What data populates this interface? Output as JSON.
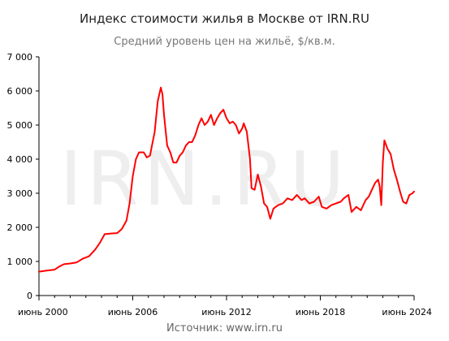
{
  "title": "Индекс стоимости жилья в Москве от IRN.RU",
  "subtitle": "Средний уровень цен на жильё, $/кв.м.",
  "source": "Источник: www.irn.ru",
  "watermark": "IRN.RU",
  "colors": {
    "line": "#ff0000",
    "axis": "#000000",
    "watermark": "#eeeeee"
  },
  "chart_data": {
    "type": "line",
    "title": "Индекс стоимости жилья в Москве от IRN.RU",
    "subtitle": "Средний уровень цен на жильё, $/кв.м.",
    "xlabel": "",
    "ylabel": "",
    "xlim": [
      2000.0,
      2024.0
    ],
    "ylim": [
      0,
      7000
    ],
    "grid": false,
    "yticks": [
      "0",
      "1 000",
      "2 000",
      "3 000",
      "4 000",
      "5 000",
      "6 000",
      "7 000"
    ],
    "xticks": [
      {
        "label": "июнь 2000",
        "x": 2000.0
      },
      {
        "label": "июнь 2006",
        "x": 2006.0
      },
      {
        "label": "июнь 2012",
        "x": 2012.0
      },
      {
        "label": "июнь 2018",
        "x": 2018.0
      },
      {
        "label": "июнь 2024",
        "x": 2024.0
      }
    ],
    "series": [
      {
        "values": [
          [
            2000.0,
            700
          ],
          [
            2000.5,
            730
          ],
          [
            2001.0,
            760
          ],
          [
            2001.3,
            850
          ],
          [
            2001.6,
            920
          ],
          [
            2002.0,
            940
          ],
          [
            2002.4,
            970
          ],
          [
            2002.8,
            1080
          ],
          [
            2003.2,
            1150
          ],
          [
            2003.6,
            1350
          ],
          [
            2003.9,
            1550
          ],
          [
            2004.2,
            1800
          ],
          [
            2004.6,
            1820
          ],
          [
            2005.0,
            1830
          ],
          [
            2005.3,
            1950
          ],
          [
            2005.6,
            2200
          ],
          [
            2005.8,
            2700
          ],
          [
            2006.0,
            3500
          ],
          [
            2006.2,
            4000
          ],
          [
            2006.4,
            4200
          ],
          [
            2006.7,
            4200
          ],
          [
            2006.9,
            4050
          ],
          [
            2007.1,
            4100
          ],
          [
            2007.4,
            4800
          ],
          [
            2007.6,
            5700
          ],
          [
            2007.8,
            6100
          ],
          [
            2007.9,
            5900
          ],
          [
            2008.0,
            5300
          ],
          [
            2008.2,
            4400
          ],
          [
            2008.4,
            4200
          ],
          [
            2008.6,
            3900
          ],
          [
            2008.8,
            3900
          ],
          [
            2009.0,
            4100
          ],
          [
            2009.2,
            4200
          ],
          [
            2009.4,
            4400
          ],
          [
            2009.6,
            4500
          ],
          [
            2009.8,
            4500
          ],
          [
            2010.0,
            4700
          ],
          [
            2010.2,
            5000
          ],
          [
            2010.4,
            5200
          ],
          [
            2010.6,
            5000
          ],
          [
            2010.8,
            5100
          ],
          [
            2011.0,
            5300
          ],
          [
            2011.2,
            5000
          ],
          [
            2011.4,
            5200
          ],
          [
            2011.6,
            5350
          ],
          [
            2011.8,
            5450
          ],
          [
            2012.0,
            5200
          ],
          [
            2012.2,
            5050
          ],
          [
            2012.4,
            5100
          ],
          [
            2012.6,
            5000
          ],
          [
            2012.8,
            4750
          ],
          [
            2013.0,
            4900
          ],
          [
            2013.1,
            5050
          ],
          [
            2013.3,
            4800
          ],
          [
            2013.5,
            4000
          ],
          [
            2013.6,
            3150
          ],
          [
            2013.8,
            3100
          ],
          [
            2014.0,
            3550
          ],
          [
            2014.2,
            3200
          ],
          [
            2014.4,
            2700
          ],
          [
            2014.6,
            2600
          ],
          [
            2014.8,
            2250
          ],
          [
            2015.0,
            2550
          ],
          [
            2015.3,
            2650
          ],
          [
            2015.6,
            2700
          ],
          [
            2015.9,
            2850
          ],
          [
            2016.2,
            2800
          ],
          [
            2016.5,
            2950
          ],
          [
            2016.8,
            2800
          ],
          [
            2017.0,
            2850
          ],
          [
            2017.3,
            2700
          ],
          [
            2017.6,
            2750
          ],
          [
            2017.9,
            2900
          ],
          [
            2018.1,
            2600
          ],
          [
            2018.4,
            2550
          ],
          [
            2018.7,
            2650
          ],
          [
            2019.0,
            2700
          ],
          [
            2019.3,
            2750
          ],
          [
            2019.5,
            2850
          ],
          [
            2019.8,
            2950
          ],
          [
            2020.0,
            2450
          ],
          [
            2020.3,
            2600
          ],
          [
            2020.6,
            2500
          ],
          [
            2020.9,
            2800
          ],
          [
            2021.1,
            2900
          ],
          [
            2021.3,
            3100
          ],
          [
            2021.5,
            3300
          ],
          [
            2021.7,
            3400
          ],
          [
            2021.8,
            3200
          ],
          [
            2021.9,
            2650
          ],
          [
            2022.0,
            3900
          ],
          [
            2022.1,
            4550
          ],
          [
            2022.3,
            4300
          ],
          [
            2022.5,
            4150
          ],
          [
            2022.7,
            3700
          ],
          [
            2022.9,
            3400
          ],
          [
            2023.1,
            3050
          ],
          [
            2023.3,
            2750
          ],
          [
            2023.5,
            2700
          ],
          [
            2023.7,
            2950
          ],
          [
            2023.9,
            3000
          ],
          [
            2024.0,
            3050
          ]
        ]
      }
    ]
  }
}
